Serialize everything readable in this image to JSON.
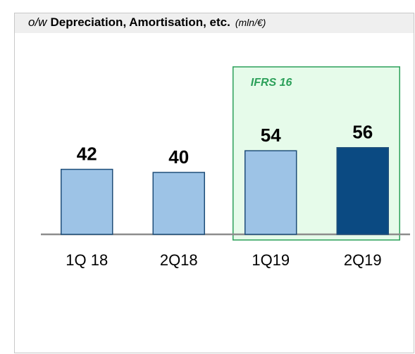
{
  "chart_data": {
    "type": "bar",
    "title_prefix": "o/w",
    "title": "Depreciation, Amortisation, etc.",
    "unit": "(mln/€)",
    "categories": [
      "1Q 18",
      "2Q18",
      "1Q19",
      "2Q19"
    ],
    "values": [
      42,
      40,
      54,
      56
    ],
    "colors": [
      "#9dc3e6",
      "#9dc3e6",
      "#9dc3e6",
      "#0b4a82"
    ],
    "ylim": [
      0,
      65
    ],
    "highlight": {
      "label": "IFRS 16",
      "from": "1Q19",
      "to": "2Q19",
      "color": "#2ca05a"
    }
  }
}
